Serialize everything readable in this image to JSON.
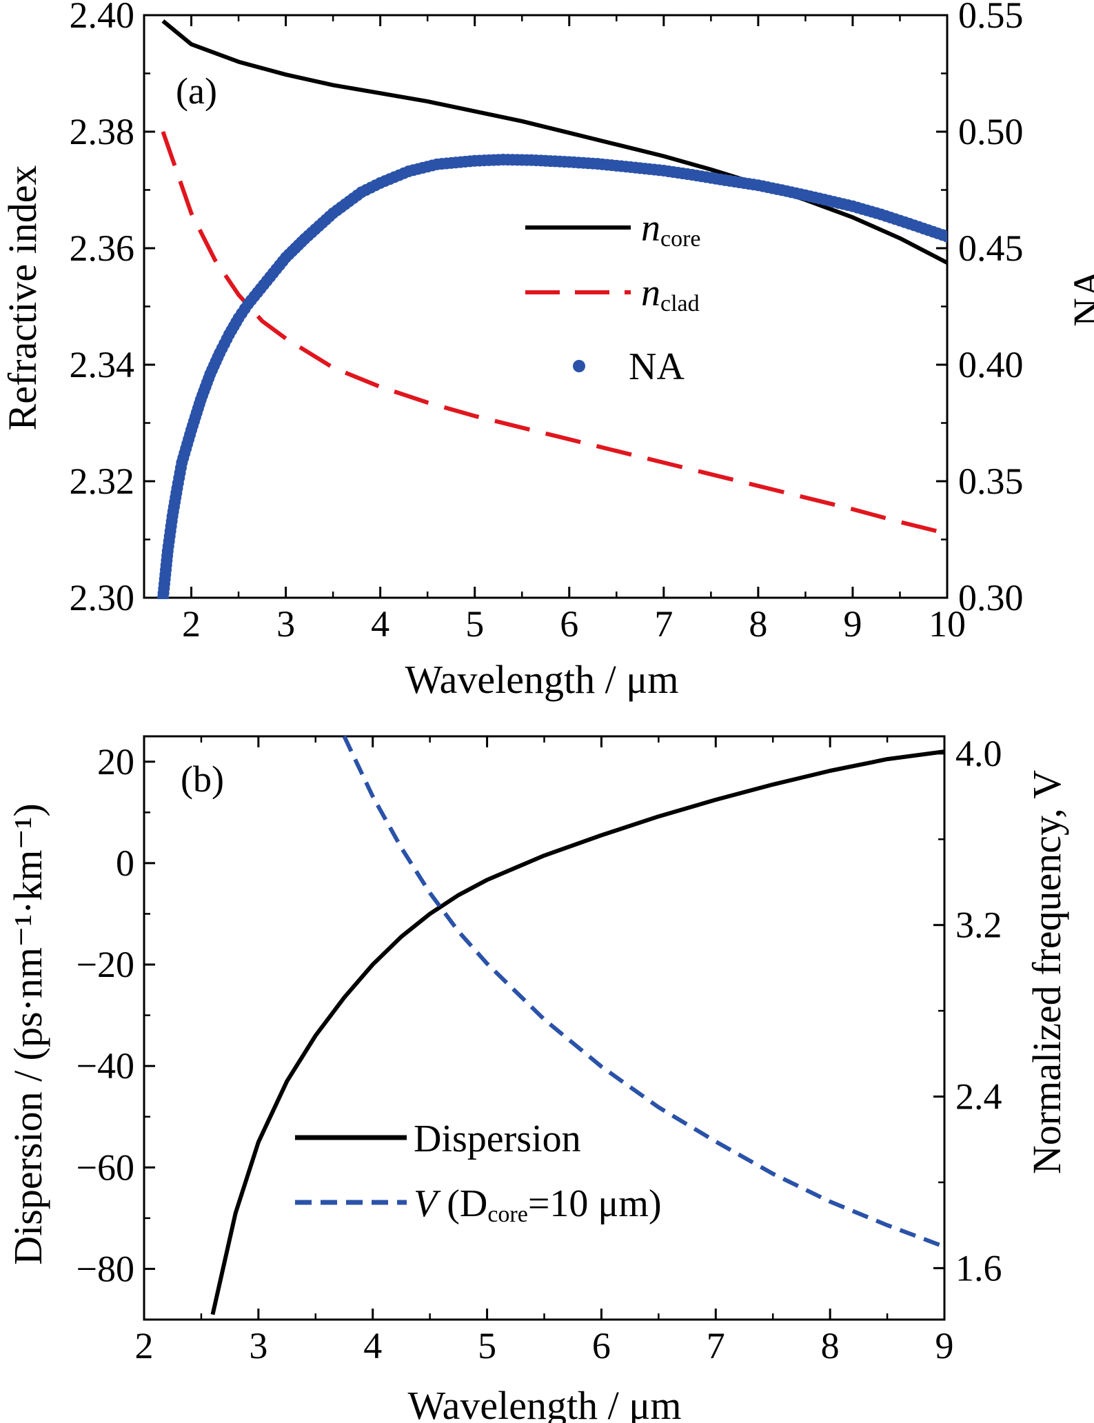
{
  "chart_data": [
    {
      "panel_label": "(a)",
      "type": "line",
      "xlabel": "Wavelength / μm",
      "ylabel_left": "Refractive index",
      "ylabel_right": "NA",
      "xlim": [
        1.5,
        10
      ],
      "ylim_left": [
        2.3,
        2.4
      ],
      "ylim_right": [
        0.3,
        0.55
      ],
      "x_ticks": [
        2,
        3,
        4,
        5,
        6,
        7,
        8,
        9,
        10
      ],
      "x_tick_labels": [
        "2",
        "3",
        "4",
        "5",
        "6",
        "7",
        "8",
        "9",
        "10"
      ],
      "y_left_ticks": [
        2.3,
        2.32,
        2.34,
        2.36,
        2.38,
        2.4
      ],
      "y_left_tick_labels": [
        "2.30",
        "2.32",
        "2.34",
        "2.36",
        "2.38",
        "2.40"
      ],
      "y_right_ticks": [
        0.3,
        0.35,
        0.4,
        0.45,
        0.5,
        0.55
      ],
      "y_right_tick_labels": [
        "0.30",
        "0.35",
        "0.40",
        "0.45",
        "0.50",
        "0.55"
      ],
      "legend_position": "center-right",
      "series": [
        {
          "name_main": "n",
          "name_sub": "core",
          "axis": "left",
          "style": "solid",
          "color": "#000000",
          "x": [
            1.7,
            2.0,
            2.5,
            3.0,
            3.5,
            4.0,
            4.5,
            5.0,
            5.5,
            6.0,
            6.5,
            7.0,
            7.5,
            8.0,
            8.5,
            9.0,
            9.5,
            10.0
          ],
          "y": [
            2.399,
            2.395,
            2.392,
            2.3898,
            2.388,
            2.3866,
            2.3852,
            2.3835,
            2.3818,
            2.3798,
            2.3778,
            2.3758,
            2.3735,
            2.371,
            2.3683,
            2.3653,
            2.3617,
            2.3575
          ]
        },
        {
          "name_main": "n",
          "name_sub": "clad",
          "axis": "left",
          "style": "dashed",
          "color": "#e0161e",
          "x": [
            1.7,
            2.0,
            2.25,
            2.5,
            2.75,
            3.0,
            3.5,
            4.0,
            4.5,
            5.0,
            5.5,
            6.0,
            6.5,
            7.0,
            7.5,
            8.0,
            8.5,
            9.0,
            9.5,
            10.0
          ],
          "y": [
            2.38,
            2.366,
            2.358,
            2.352,
            2.3475,
            2.3445,
            2.3395,
            2.3362,
            2.3335,
            2.3312,
            2.3292,
            2.3272,
            2.3252,
            2.3232,
            2.3212,
            2.3192,
            2.3172,
            2.3152,
            2.313,
            2.311
          ]
        },
        {
          "name": "NA",
          "axis": "right",
          "style": "markers",
          "color": "#2a52a8",
          "x": [
            1.7,
            1.75,
            1.8,
            1.85,
            1.9,
            2.0,
            2.1,
            2.2,
            2.3,
            2.4,
            2.5,
            2.6,
            2.8,
            3.0,
            3.2,
            3.5,
            3.8,
            4.0,
            4.3,
            4.6,
            5.0,
            5.3,
            5.6,
            6.0,
            6.3,
            6.6,
            7.0,
            7.3,
            7.6,
            8.0,
            8.3,
            8.6,
            9.0,
            9.3,
            9.6,
            10.0
          ],
          "y": [
            0.3,
            0.32,
            0.335,
            0.347,
            0.358,
            0.372,
            0.385,
            0.396,
            0.405,
            0.413,
            0.42,
            0.426,
            0.436,
            0.446,
            0.454,
            0.465,
            0.474,
            0.478,
            0.483,
            0.486,
            0.4875,
            0.488,
            0.4878,
            0.487,
            0.4862,
            0.485,
            0.4833,
            0.4815,
            0.4795,
            0.477,
            0.4745,
            0.4718,
            0.468,
            0.4645,
            0.4605,
            0.455
          ]
        }
      ]
    },
    {
      "panel_label": "(b)",
      "type": "line",
      "xlabel": "Wavelength  / μm",
      "ylabel_left": "Dispersion / (ps·nm⁻¹·km⁻¹)",
      "ylabel_right": "Normalized frequency, V",
      "xlim": [
        2,
        9
      ],
      "ylim_left": [
        -90,
        25
      ],
      "ylim_right": [
        1.36,
        4.08
      ],
      "x_ticks": [
        2,
        3,
        4,
        5,
        6,
        7,
        8,
        9
      ],
      "x_tick_labels": [
        "2",
        "3",
        "4",
        "5",
        "6",
        "7",
        "8",
        "9"
      ],
      "y_left_ticks": [
        -80,
        -60,
        -40,
        -20,
        0,
        20
      ],
      "y_left_tick_labels": [
        "−80",
        "−60",
        "−40",
        "−20",
        "0",
        "20"
      ],
      "y_right_ticks": [
        1.6,
        2.4,
        3.2,
        4.0
      ],
      "y_right_tick_labels": [
        "1.6",
        "2.4",
        "3.2",
        "4.0"
      ],
      "legend_position": "bottom-center",
      "series": [
        {
          "name": "Dispersion",
          "axis": "left",
          "style": "solid",
          "color": "#000000",
          "x": [
            2.6,
            2.8,
            3.0,
            3.25,
            3.5,
            3.75,
            4.0,
            4.25,
            4.5,
            4.75,
            5.0,
            5.5,
            6.0,
            6.5,
            7.0,
            7.5,
            8.0,
            8.5,
            9.0
          ],
          "y": [
            -89,
            -69,
            -55,
            -43,
            -34,
            -26.5,
            -20,
            -14.5,
            -10,
            -6.3,
            -3.3,
            1.5,
            5.5,
            9.2,
            12.5,
            15.5,
            18.2,
            20.5,
            22
          ]
        },
        {
          "name_main": "V",
          "name_mid": " (D",
          "name_sub": "core",
          "name_end": "=10 μm)",
          "axis": "right",
          "style": "dashed",
          "color": "#2a52a8",
          "x": [
            3.75,
            4.0,
            4.25,
            4.5,
            4.75,
            5.0,
            5.5,
            6.0,
            6.5,
            7.0,
            7.5,
            8.0,
            8.5,
            9.0
          ],
          "y": [
            4.08,
            3.8,
            3.56,
            3.35,
            3.17,
            3.02,
            2.76,
            2.54,
            2.35,
            2.19,
            2.04,
            1.91,
            1.8,
            1.7
          ]
        }
      ]
    }
  ]
}
